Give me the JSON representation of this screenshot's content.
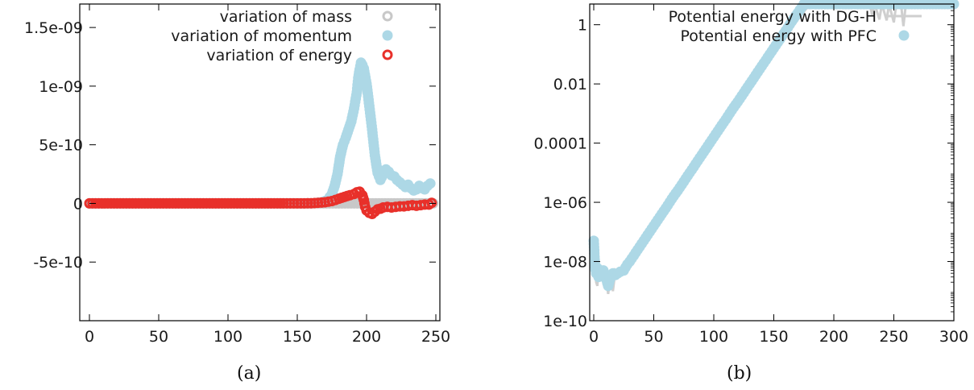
{
  "colors": {
    "mass": "#c8c8c8",
    "momentum": "#add8e6",
    "energy": "#e8302a",
    "dgh": "#cfcfcf",
    "pfc": "#add8e6",
    "axis": "#000000"
  },
  "chart_data": [
    {
      "type": "scatter",
      "caption": "(a)",
      "xlim": [
        0,
        250
      ],
      "ylim": [
        -1e-09,
        1.7e-09
      ],
      "xticks": [
        "0",
        "50",
        "100",
        "150",
        "200",
        "250"
      ],
      "xtick_values": [
        0,
        50,
        100,
        150,
        200,
        250
      ],
      "yticks": [
        "-5e-10",
        "0",
        "5e-10",
        "1e-09",
        "1.5e-09"
      ],
      "ytick_values": [
        -5e-10,
        0,
        5e-10,
        1e-09,
        1.5e-09
      ],
      "legend_position": "top-right",
      "series": [
        {
          "name": "variation of mass",
          "marker": "open-circle",
          "color": "#c8c8c8",
          "points": [
            [
              0,
              0
            ],
            [
              20,
              0
            ],
            [
              40,
              0
            ],
            [
              60,
              0
            ],
            [
              80,
              0
            ],
            [
              100,
              0
            ],
            [
              120,
              0
            ],
            [
              140,
              0
            ],
            [
              160,
              0
            ],
            [
              180,
              0
            ],
            [
              200,
              0
            ],
            [
              220,
              0
            ],
            [
              240,
              0
            ],
            [
              248,
              0
            ]
          ]
        },
        {
          "name": "variation of momentum",
          "marker": "filled-circle",
          "color": "#add8e6",
          "points": [
            [
              0,
              0
            ],
            [
              20,
              0
            ],
            [
              40,
              0
            ],
            [
              60,
              0
            ],
            [
              80,
              0
            ],
            [
              100,
              0
            ],
            [
              120,
              0
            ],
            [
              140,
              0
            ],
            [
              160,
              0
            ],
            [
              168,
              1e-11
            ],
            [
              172,
              3e-11
            ],
            [
              175,
              8e-11
            ],
            [
              177,
              1.5e-10
            ],
            [
              179,
              2.5e-10
            ],
            [
              181,
              4e-10
            ],
            [
              183,
              5e-10
            ],
            [
              185,
              5.6e-10
            ],
            [
              187,
              6.3e-10
            ],
            [
              189,
              7e-10
            ],
            [
              191,
              8.1e-10
            ],
            [
              193,
              9.5e-10
            ],
            [
              194,
              1.07e-09
            ],
            [
              195,
              1.14e-09
            ],
            [
              196,
              1.2e-09
            ],
            [
              197,
              1.18e-09
            ],
            [
              198,
              1.15e-09
            ],
            [
              200,
              1.02e-09
            ],
            [
              202,
              8.3e-10
            ],
            [
              204,
              6.3e-10
            ],
            [
              206,
              4.1e-10
            ],
            [
              208,
              2.6e-10
            ],
            [
              210,
              2e-10
            ],
            [
              212,
              2.5e-10
            ],
            [
              214,
              2.9e-10
            ],
            [
              216,
              2.7e-10
            ],
            [
              218,
              2.4e-10
            ],
            [
              220,
              2.3e-10
            ],
            [
              222,
              2e-10
            ],
            [
              224,
              1.8e-10
            ],
            [
              226,
              1.6e-10
            ],
            [
              228,
              1.4e-10
            ],
            [
              230,
              1.6e-10
            ],
            [
              232,
              1.3e-10
            ],
            [
              234,
              1.1e-10
            ],
            [
              236,
              1.2e-10
            ],
            [
              238,
              1.5e-10
            ],
            [
              240,
              1.3e-10
            ],
            [
              242,
              1.2e-10
            ],
            [
              244,
              1.5e-10
            ],
            [
              246,
              1.7e-10
            ]
          ]
        },
        {
          "name": "variation of energy",
          "marker": "open-circle",
          "color": "#e8302a",
          "points": [
            [
              0,
              0
            ],
            [
              20,
              0
            ],
            [
              40,
              0
            ],
            [
              60,
              0
            ],
            [
              80,
              0
            ],
            [
              100,
              0
            ],
            [
              120,
              0
            ],
            [
              140,
              0
            ],
            [
              150,
              0
            ],
            [
              160,
              1e-12
            ],
            [
              165,
              5e-12
            ],
            [
              170,
              1e-11
            ],
            [
              175,
              2e-11
            ],
            [
              180,
              4e-11
            ],
            [
              184,
              5.5e-11
            ],
            [
              188,
              7e-11
            ],
            [
              191,
              8e-11
            ],
            [
              193,
              9.5e-11
            ],
            [
              195,
              1e-10
            ],
            [
              197,
              7e-11
            ],
            [
              198,
              3e-11
            ],
            [
              199,
              -3e-11
            ],
            [
              200,
              -6e-11
            ],
            [
              202,
              -8e-11
            ],
            [
              204,
              -9e-11
            ],
            [
              206,
              -7e-11
            ],
            [
              208,
              -5e-11
            ],
            [
              210,
              -4.5e-11
            ],
            [
              212,
              -3.5e-11
            ],
            [
              215,
              -3e-11
            ],
            [
              218,
              -3.5e-11
            ],
            [
              221,
              -3e-11
            ],
            [
              224,
              -2.5e-11
            ],
            [
              227,
              -2.5e-11
            ],
            [
              230,
              -2e-11
            ],
            [
              233,
              -1.5e-11
            ],
            [
              236,
              -2e-11
            ],
            [
              239,
              -1.5e-11
            ],
            [
              242,
              -1e-11
            ],
            [
              245,
              -1e-11
            ],
            [
              247,
              5e-12
            ]
          ]
        }
      ]
    },
    {
      "type": "line",
      "caption": "(b)",
      "yscale": "log",
      "xlim": [
        0,
        300
      ],
      "ylim": [
        1e-10,
        5
      ],
      "xticks": [
        "0",
        "50",
        "100",
        "150",
        "200",
        "250",
        "300"
      ],
      "xtick_values": [
        0,
        50,
        100,
        150,
        200,
        250,
        300
      ],
      "yticks": [
        "1e-10",
        "1e-08",
        "1e-06",
        "0.0001",
        "0.01",
        "1"
      ],
      "ytick_values": [
        1e-10,
        1e-08,
        1e-06,
        0.0001,
        0.01,
        1
      ],
      "legend_position": "top-right",
      "series": [
        {
          "name": "Potential energy with DG-H",
          "marker": "line",
          "color": "#cfcfcf",
          "points": [
            [
              0,
              6e-08
            ],
            [
              1,
              1e-08
            ],
            [
              2,
              2e-09
            ],
            [
              3,
              1.5e-09
            ],
            [
              4,
              1e-08
            ],
            [
              5,
              3e-09
            ],
            [
              6,
              5e-09
            ],
            [
              8,
              2e-09
            ],
            [
              10,
              3e-09
            ],
            [
              12,
              8e-10
            ],
            [
              14,
              4e-09
            ],
            [
              16,
              1e-09
            ],
            [
              18,
              5e-09
            ],
            [
              20,
              4e-09
            ],
            [
              25,
              6e-09
            ],
            [
              30,
              1.1e-08
            ],
            [
              40,
              5e-08
            ],
            [
              50,
              2e-07
            ],
            [
              60,
              7e-07
            ],
            [
              70,
              3e-06
            ],
            [
              80,
              1e-05
            ],
            [
              90,
              4e-05
            ],
            [
              100,
              0.00015
            ],
            [
              110,
              0.0006
            ],
            [
              120,
              0.0023
            ],
            [
              130,
              0.0085
            ],
            [
              140,
              0.033
            ],
            [
              150,
              0.12
            ],
            [
              160,
              0.43
            ],
            [
              170,
              1.5
            ],
            [
              180,
              5
            ],
            [
              190,
              10
            ],
            [
              200,
              12
            ],
            [
              210,
              9
            ],
            [
              220,
              7
            ],
            [
              230,
              6
            ],
            [
              232,
              2
            ],
            [
              234,
              6
            ],
            [
              238,
              1.5
            ],
            [
              240,
              6
            ],
            [
              244,
              1.4
            ],
            [
              246,
              6
            ],
            [
              250,
              1.2
            ],
            [
              252,
              6
            ],
            [
              256,
              6
            ],
            [
              258,
              0.9
            ],
            [
              260,
              6
            ],
            [
              270,
              6
            ],
            [
              280,
              6
            ],
            [
              290,
              6
            ],
            [
              300,
              6
            ]
          ]
        },
        {
          "name": "Potential energy with PFC",
          "marker": "filled-circle",
          "color": "#add8e6",
          "points": [
            [
              0,
              5e-08
            ],
            [
              1,
              7e-09
            ],
            [
              2,
              4e-09
            ],
            [
              3,
              6e-09
            ],
            [
              4,
              3e-09
            ],
            [
              5,
              5e-09
            ],
            [
              6,
              4e-09
            ],
            [
              8,
              5e-09
            ],
            [
              10,
              3e-09
            ],
            [
              12,
              1.5e-09
            ],
            [
              14,
              3e-09
            ],
            [
              16,
              4e-09
            ],
            [
              18,
              3.5e-09
            ],
            [
              20,
              4e-09
            ],
            [
              22,
              4.5e-09
            ],
            [
              25,
              5e-09
            ],
            [
              28,
              8e-09
            ],
            [
              30,
              1e-08
            ],
            [
              35,
              2e-08
            ],
            [
              40,
              4e-08
            ],
            [
              45,
              8e-08
            ],
            [
              50,
              1.6e-07
            ],
            [
              55,
              3.2e-07
            ],
            [
              60,
              6.3e-07
            ],
            [
              65,
              1.3e-06
            ],
            [
              70,
              2.5e-06
            ],
            [
              75,
              5e-06
            ],
            [
              80,
              1e-05
            ],
            [
              85,
              2e-05
            ],
            [
              90,
              4e-05
            ],
            [
              95,
              8e-05
            ],
            [
              100,
              0.00016
            ],
            [
              105,
              0.00032
            ],
            [
              110,
              0.00063
            ],
            [
              115,
              0.0013
            ],
            [
              120,
              0.0025
            ],
            [
              125,
              0.005
            ],
            [
              130,
              0.01
            ],
            [
              135,
              0.02
            ],
            [
              140,
              0.04
            ],
            [
              145,
              0.08
            ],
            [
              150,
              0.16
            ],
            [
              155,
              0.32
            ],
            [
              160,
              0.63
            ],
            [
              165,
              1.3
            ],
            [
              170,
              2.5
            ],
            [
              175,
              5
            ],
            [
              180,
              8
            ],
            [
              185,
              10
            ],
            [
              190,
              11
            ],
            [
              195,
              12
            ],
            [
              200,
              13
            ],
            [
              205,
              11.5
            ],
            [
              210,
              10
            ],
            [
              215,
              9
            ],
            [
              220,
              8
            ],
            [
              225,
              7.2
            ],
            [
              230,
              7
            ],
            [
              235,
              7.5
            ],
            [
              240,
              7
            ],
            [
              245,
              7.2
            ],
            [
              250,
              7.5
            ],
            [
              255,
              7
            ],
            [
              260,
              7.2
            ],
            [
              265,
              7.5
            ],
            [
              270,
              7
            ],
            [
              275,
              7.2
            ],
            [
              280,
              7.5
            ],
            [
              285,
              7
            ],
            [
              290,
              7.2
            ],
            [
              295,
              7.5
            ],
            [
              300,
              7
            ]
          ]
        }
      ]
    }
  ]
}
